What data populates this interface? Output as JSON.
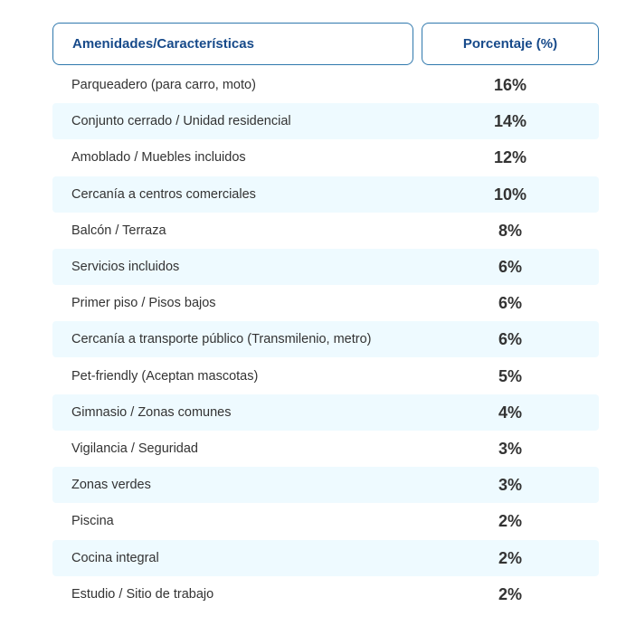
{
  "chart_data": {
    "type": "table",
    "columns": [
      "Amenidades/Características",
      "Porcentaje (%)"
    ],
    "rows": [
      {
        "label": "Parqueadero (para carro, moto)",
        "value": "16%"
      },
      {
        "label": "Conjunto cerrado / Unidad residencial",
        "value": "14%"
      },
      {
        "label": "Amoblado / Muebles incluidos",
        "value": "12%"
      },
      {
        "label": "Cercanía a centros comerciales",
        "value": "10%"
      },
      {
        "label": "Balcón / Terraza",
        "value": "8%"
      },
      {
        "label": "Servicios incluidos",
        "value": "6%"
      },
      {
        "label": "Primer piso / Pisos bajos",
        "value": "6%"
      },
      {
        "label": "Cercanía a transporte público (Transmilenio, metro)",
        "value": "6%"
      },
      {
        "label": "Pet-friendly (Aceptan mascotas)",
        "value": "5%"
      },
      {
        "label": "Gimnasio / Zonas comunes",
        "value": "4%"
      },
      {
        "label": "Vigilancia / Seguridad",
        "value": "3%"
      },
      {
        "label": "Zonas verdes",
        "value": "3%"
      },
      {
        "label": "Piscina",
        "value": "2%"
      },
      {
        "label": "Cocina integral",
        "value": "2%"
      },
      {
        "label": "Estudio / Sitio de trabajo",
        "value": "2%"
      }
    ]
  },
  "colors": {
    "header_text": "#174a8a",
    "header_border": "#2f78ad",
    "row_alt_background": "#eefaff",
    "body_text": "#333333"
  }
}
